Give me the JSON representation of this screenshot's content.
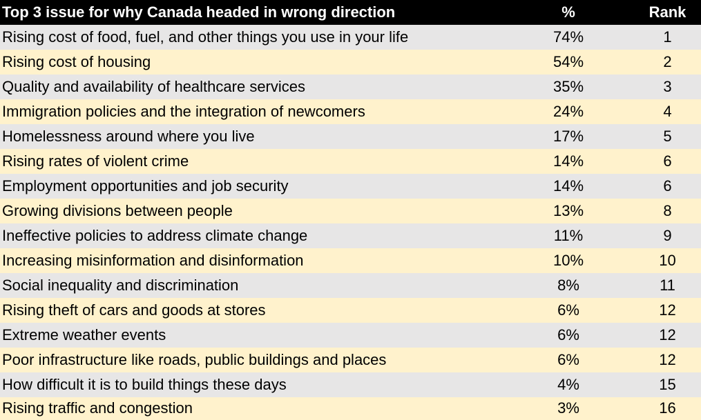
{
  "chart_data": {
    "type": "table",
    "columns": [
      "Top 3 issue for why Canada headed in wrong direction",
      "%",
      "Rank"
    ],
    "rows": [
      {
        "issue": "Rising cost of food, fuel, and other things you use in your life",
        "pct": "74%",
        "rank": "1"
      },
      {
        "issue": "Rising cost of housing",
        "pct": "54%",
        "rank": "2"
      },
      {
        "issue": "Quality and availability of healthcare services",
        "pct": "35%",
        "rank": "3"
      },
      {
        "issue": "Immigration policies and the integration of newcomers",
        "pct": "24%",
        "rank": "4"
      },
      {
        "issue": "Homelessness around where you live",
        "pct": "17%",
        "rank": "5"
      },
      {
        "issue": "Rising rates of violent crime",
        "pct": "14%",
        "rank": "6"
      },
      {
        "issue": "Employment opportunities and job security",
        "pct": "14%",
        "rank": "6"
      },
      {
        "issue": "Growing divisions between people",
        "pct": "13%",
        "rank": "8"
      },
      {
        "issue": "Ineffective policies to address climate change",
        "pct": "11%",
        "rank": "9"
      },
      {
        "issue": "Increasing misinformation and disinformation",
        "pct": "10%",
        "rank": "10"
      },
      {
        "issue": "Social inequality and discrimination",
        "pct": "8%",
        "rank": "11"
      },
      {
        "issue": "Rising theft of cars and goods at stores",
        "pct": "6%",
        "rank": "12"
      },
      {
        "issue": "Extreme weather events",
        "pct": "6%",
        "rank": "12"
      },
      {
        "issue": "Poor infrastructure like roads, public buildings and places",
        "pct": "6%",
        "rank": "12"
      },
      {
        "issue": "How difficult it is to build things these days",
        "pct": "4%",
        "rank": "15"
      },
      {
        "issue": "Rising traffic and congestion",
        "pct": "3%",
        "rank": "16"
      }
    ],
    "colors": {
      "header_bg": "#000000",
      "header_text": "#ffffff",
      "row_odd": "#e7e6e6",
      "row_even": "#fff2cc"
    }
  }
}
